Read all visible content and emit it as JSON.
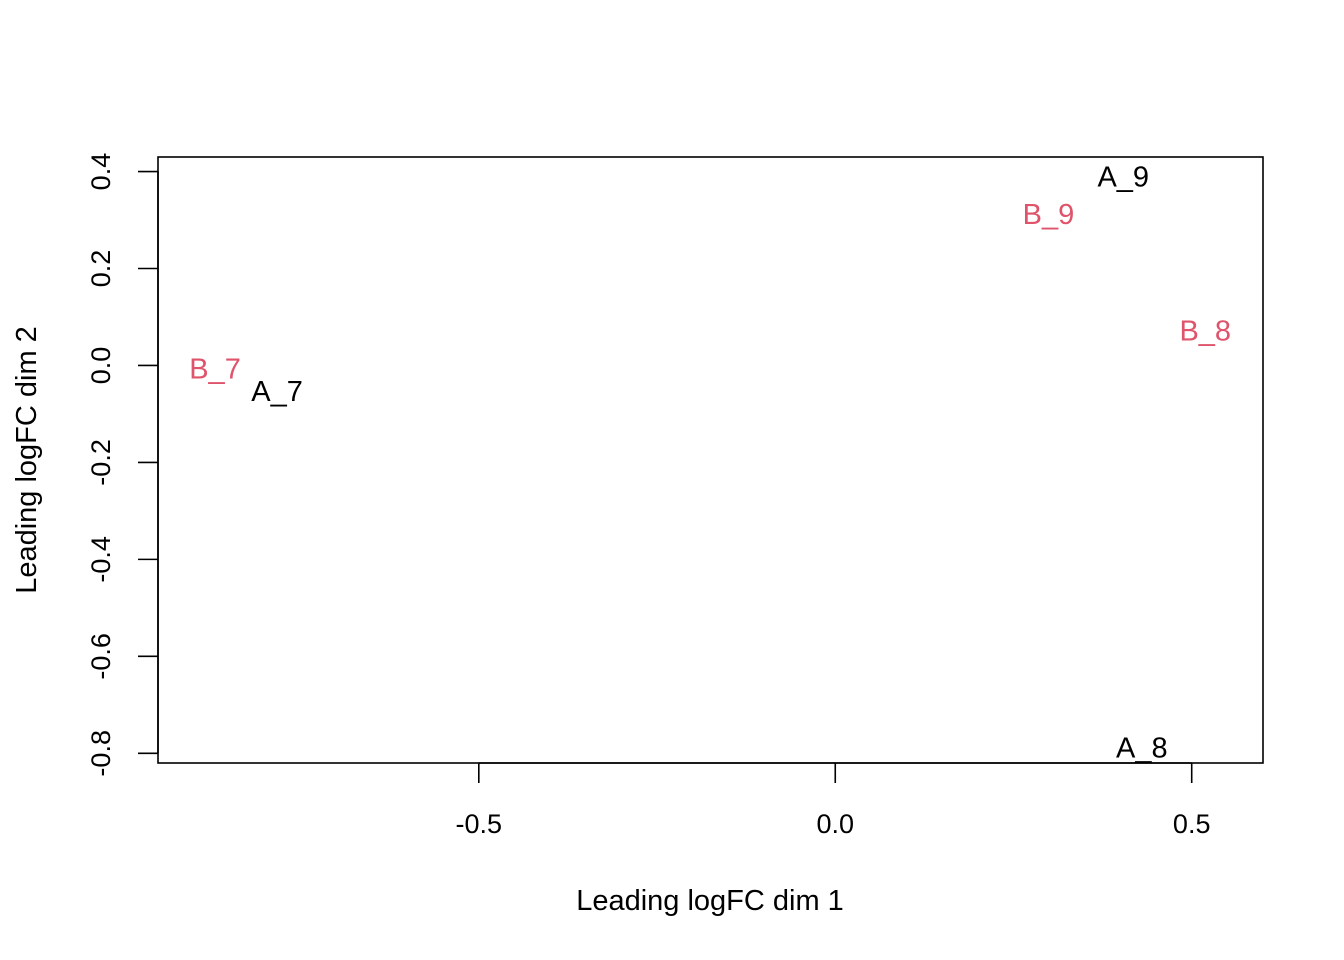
{
  "chart_data": {
    "type": "scatter",
    "xlabel": "Leading logFC dim 1",
    "ylabel": "Leading logFC dim 2",
    "xlim": [
      -0.95,
      0.6
    ],
    "ylim": [
      -0.82,
      0.43
    ],
    "xticks": [
      "-0.5",
      "0.0",
      "0.5"
    ],
    "yticks": [
      "-0.8",
      "-0.6",
      "-0.4",
      "-0.2",
      "0.0",
      "0.2",
      "0.4"
    ],
    "grid": false,
    "legend": "none",
    "colors": {
      "A": "#000000",
      "B": "#df536b"
    },
    "points": [
      {
        "label": "A_9",
        "group": "A",
        "x": 0.404,
        "y": 0.388
      },
      {
        "label": "B_9",
        "group": "B",
        "x": 0.299,
        "y": 0.31
      },
      {
        "label": "B_8",
        "group": "B",
        "x": 0.519,
        "y": 0.07
      },
      {
        "label": "B_7",
        "group": "B",
        "x": -0.87,
        "y": -0.008
      },
      {
        "label": "A_7",
        "group": "A",
        "x": -0.783,
        "y": -0.055
      },
      {
        "label": "A_8",
        "group": "A",
        "x": 0.43,
        "y": -0.79
      }
    ]
  }
}
